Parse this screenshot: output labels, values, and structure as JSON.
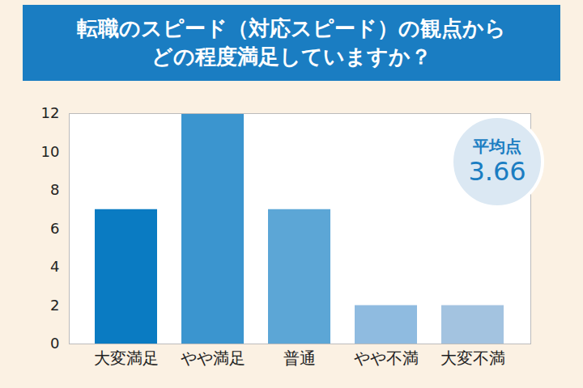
{
  "chart_data": {
    "type": "bar",
    "title": "転職のスピード（対応スピード）の観点からどの程度満足していますか？",
    "categories": [
      "大変満足",
      "やや満足",
      "普通",
      "やや不満",
      "大変不満"
    ],
    "values": [
      7,
      12,
      7,
      2,
      2
    ],
    "colors": [
      "#0a7bc2",
      "#3b95cf",
      "#5ca6d6",
      "#8fbbe0",
      "#a3c3e0"
    ],
    "ylim": [
      0,
      12
    ],
    "yticks": [
      0,
      2,
      4,
      6,
      8,
      10,
      12
    ],
    "grid": false,
    "average": {
      "label": "平均点",
      "value": 3.66
    }
  }
}
